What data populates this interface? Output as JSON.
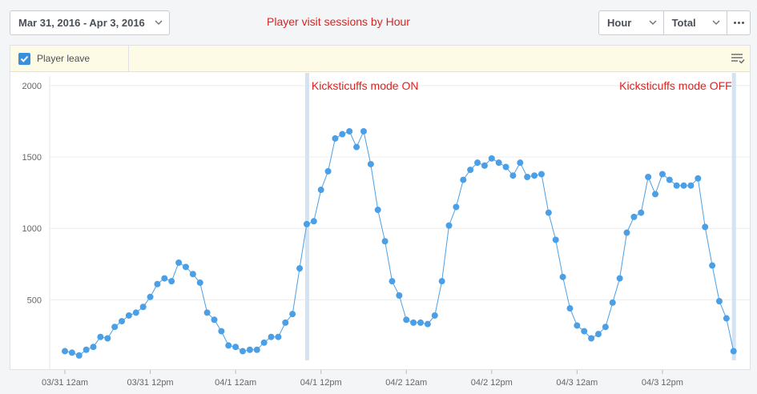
{
  "header": {
    "date_range": "Mar 31, 2016 - Apr 3, 2016",
    "chart_title": "Player visit sessions by Hour",
    "interval": "Hour",
    "aggregation": "Total"
  },
  "legend": {
    "items": [
      {
        "label": "Player leave",
        "checked": true
      }
    ]
  },
  "icons": {
    "date_dropdown": "chevron-down-icon",
    "checkbox": "checkmark-icon",
    "more": "ellipsis-icon",
    "legend_menu": "list-settings-icon"
  },
  "colors": {
    "series": "#4a9fe6",
    "annotation_text": "#e02020",
    "annotation_line": "#d4e3f1"
  },
  "chart_data": {
    "type": "line",
    "title": "Player visit sessions by Hour",
    "ylim": [
      0,
      2000
    ],
    "yticks": [
      500,
      1000,
      1500,
      2000
    ],
    "xtick_labels": [
      "03/31 12am",
      "03/31 12pm",
      "04/1 12am",
      "04/1 12pm",
      "04/2 12am",
      "04/2 12pm",
      "04/3 12am",
      "04/3 12pm"
    ],
    "grid": true,
    "series": [
      {
        "name": "Player leave",
        "x_start": "03/31 12am",
        "values": [
          140,
          130,
          110,
          150,
          170,
          240,
          230,
          310,
          350,
          390,
          410,
          450,
          520,
          610,
          650,
          630,
          760,
          730,
          680,
          620,
          410,
          360,
          280,
          180,
          170,
          140,
          150,
          150,
          200,
          240,
          240,
          340,
          400,
          720,
          1030,
          1050,
          1270,
          1400,
          1630,
          1660,
          1680,
          1570,
          1680,
          1450,
          1130,
          910,
          630,
          530,
          360,
          340,
          340,
          330,
          390,
          630,
          1020,
          1150,
          1340,
          1410,
          1460,
          1440,
          1490,
          1460,
          1430,
          1370,
          1460,
          1360,
          1370,
          1380,
          1110,
          920,
          660,
          440,
          320,
          280,
          230,
          260,
          310,
          480,
          650,
          970,
          1080,
          1110,
          1360,
          1240,
          1380,
          1340,
          1300,
          1300,
          1300,
          1350,
          1010,
          740,
          490,
          370,
          140
        ]
      }
    ],
    "annotations": [
      {
        "label": "Kicksticuffs mode ON",
        "x_index": 34
      },
      {
        "label": "Kicksticuffs mode OFF",
        "x_index": 94
      }
    ]
  }
}
